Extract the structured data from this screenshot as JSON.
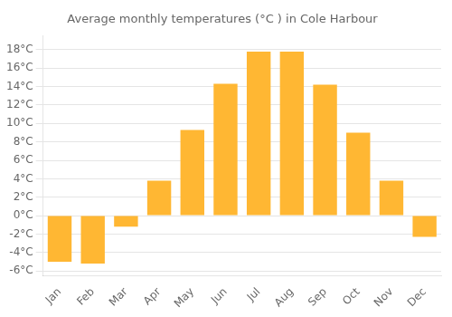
{
  "chart_data": {
    "type": "bar",
    "title": "Average monthly temperatures (°C ) in Cole Harbour",
    "categories": [
      "Jan",
      "Feb",
      "Mar",
      "Apr",
      "May",
      "Jun",
      "Jul",
      "Aug",
      "Sep",
      "Oct",
      "Nov",
      "Dec"
    ],
    "values": [
      -5,
      -5.2,
      -1.2,
      3.8,
      9.3,
      14.3,
      17.8,
      17.8,
      14.2,
      9.0,
      3.8,
      -2.3
    ],
    "color": "#FFB733",
    "ylim": [
      -6.5,
      19.5
    ],
    "yticks": [
      {
        "value": -6,
        "label": "-6°C"
      },
      {
        "value": -4,
        "label": "-4°C"
      },
      {
        "value": -2,
        "label": "-2°C"
      },
      {
        "value": 0,
        "label": "0°C"
      },
      {
        "value": 2,
        "label": "2°C"
      },
      {
        "value": 4,
        "label": "4°C"
      },
      {
        "value": 6,
        "label": "6°C"
      },
      {
        "value": 8,
        "label": "8°C"
      },
      {
        "value": 10,
        "label": "10°C"
      },
      {
        "value": 12,
        "label": "12°C"
      },
      {
        "value": 14,
        "label": "14°C"
      },
      {
        "value": 16,
        "label": "16°C"
      },
      {
        "value": 18,
        "label": "18°C"
      }
    ],
    "grid": true
  }
}
